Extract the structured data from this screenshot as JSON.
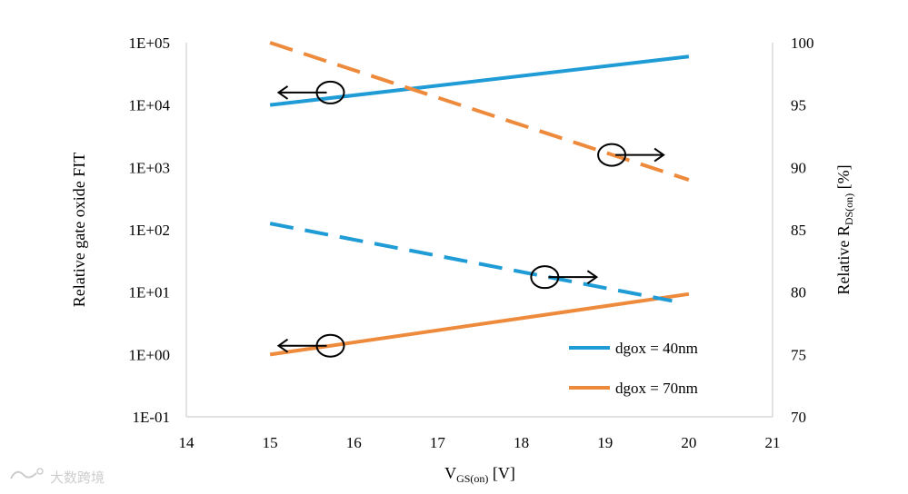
{
  "chart_data": {
    "type": "line",
    "x_axis": {
      "label_main": "V",
      "label_sub": "GS(on)",
      "label_unit": " [V]",
      "ticks": [
        14,
        15,
        16,
        17,
        18,
        19,
        20,
        21
      ],
      "range": [
        14,
        21
      ]
    },
    "y_left": {
      "label": "Relative  gate oxide  FIT",
      "scale": "log",
      "ticks": [
        "1E-01",
        "1E+00",
        "1E+01",
        "1E+02",
        "1E+03",
        "1E+04",
        "1E+05"
      ],
      "range": [
        0.1,
        100000
      ]
    },
    "y_right": {
      "label_main": "Relative  R",
      "label_sub": "DS(on)",
      "label_unit": " [%]",
      "scale": "linear",
      "ticks": [
        70,
        75,
        80,
        85,
        90,
        95,
        100
      ],
      "range": [
        70,
        100
      ]
    },
    "grid": false,
    "legend_position": "bottom-right",
    "legend": [
      {
        "label": "dgox = 40nm",
        "color": "#1f9bd6"
      },
      {
        "label": "dgox = 70nm",
        "color": "#ee8a3c"
      }
    ],
    "series": [
      {
        "axis": "left",
        "style": "solid",
        "color": "#1f9bd6",
        "x": [
          15,
          20
        ],
        "y": [
          10000,
          60000
        ]
      },
      {
        "axis": "left",
        "style": "solid",
        "color": "#ee8a3c",
        "x": [
          15,
          20
        ],
        "y": [
          1,
          9.3
        ]
      },
      {
        "axis": "right",
        "style": "dashed",
        "color": "#1f9bd6",
        "x": [
          15,
          19.8
        ],
        "y": [
          85.5,
          79.3
        ]
      },
      {
        "axis": "right",
        "style": "dashed",
        "color": "#ee8a3c",
        "x": [
          15,
          20
        ],
        "y": [
          100,
          89
        ]
      }
    ],
    "annotations": [
      {
        "x": 15.72,
        "y": 96,
        "axis": "right",
        "direction": "left"
      },
      {
        "x": 19.08,
        "y": 91,
        "axis": "right",
        "direction": "right"
      },
      {
        "x": 18.28,
        "y": 81.2,
        "axis": "right",
        "direction": "right"
      },
      {
        "x": 15.72,
        "y": 75.7,
        "axis": "right",
        "direction": "left"
      }
    ]
  },
  "watermark": {
    "text": "大数跨境"
  }
}
